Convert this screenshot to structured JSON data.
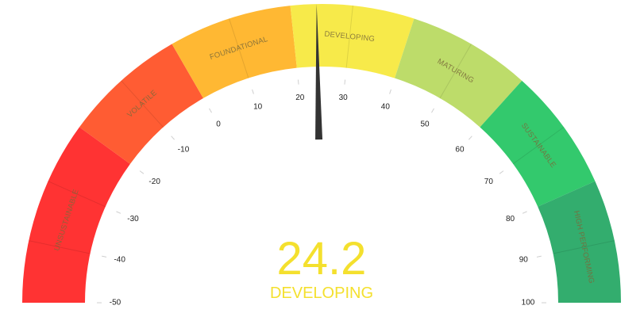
{
  "chart_data": {
    "type": "gauge",
    "min": -50,
    "max": 100,
    "value": 24.2,
    "status_label": "DEVELOPING",
    "readout_color": "#f4e02e",
    "needle_color": "#333333",
    "ticks": [
      -50,
      -40,
      -30,
      -20,
      -10,
      0,
      10,
      20,
      30,
      40,
      50,
      60,
      70,
      80,
      90,
      100
    ],
    "tick_labels": [
      "-50",
      "-40",
      "-30",
      "-20",
      "-10",
      "0",
      "10",
      "20",
      "30",
      "40",
      "50",
      "60",
      "70",
      "80",
      "90",
      "100"
    ],
    "bands": [
      {
        "name": "UNSUSTAINABLE",
        "from": -50,
        "to": -20,
        "color": "#ff3333"
      },
      {
        "name": "VOLATILE",
        "from": -20,
        "to": 0,
        "color": "#ff5c33"
      },
      {
        "name": "FOUNDATIONAL",
        "from": 0,
        "to": 20,
        "color": "#ffb833"
      },
      {
        "name": "DEVELOPING",
        "from": 20,
        "to": 40,
        "color": "#f7ea4a"
      },
      {
        "name": "MATURING",
        "from": 40,
        "to": 60,
        "color": "#bddc6a"
      },
      {
        "name": "SUSTAINABLE",
        "from": 60,
        "to": 80,
        "color": "#33c96d"
      },
      {
        "name": "HIGH PERFORMING",
        "from": 80,
        "to": 100,
        "color": "#33ad6e"
      }
    ]
  },
  "readout": {
    "value_text": "24.2",
    "status_text": "DEVELOPING"
  }
}
